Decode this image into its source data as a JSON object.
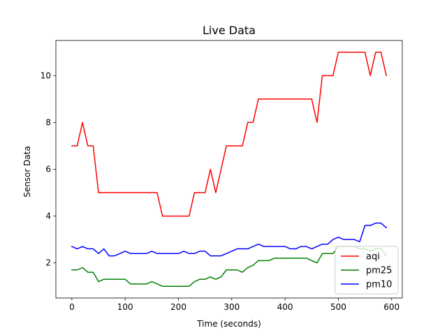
{
  "chart_data": {
    "type": "line",
    "title": "Live Data",
    "xlabel": "Time (seconds)",
    "ylabel": "Sensor Data",
    "xlim": [
      -30,
      620
    ],
    "ylim": [
      0.5,
      11.5
    ],
    "xticks": [
      0,
      100,
      200,
      300,
      400,
      500,
      600
    ],
    "yticks": [
      2,
      4,
      6,
      8,
      10
    ],
    "grid": false,
    "legend": "bottom-right",
    "series": [
      {
        "name": "aqi",
        "color": "#ff0000",
        "x": [
          0,
          10,
          20,
          30,
          40,
          50,
          60,
          70,
          80,
          90,
          100,
          110,
          120,
          130,
          140,
          150,
          160,
          170,
          180,
          190,
          200,
          210,
          220,
          230,
          240,
          250,
          260,
          270,
          280,
          290,
          300,
          310,
          320,
          330,
          340,
          350,
          360,
          370,
          380,
          390,
          400,
          410,
          420,
          430,
          440,
          450,
          460,
          470,
          480,
          490,
          500,
          510,
          520,
          530,
          540,
          550,
          560,
          570,
          580,
          590
        ],
        "values": [
          7,
          7,
          8,
          7,
          7,
          5,
          5,
          5,
          5,
          5,
          5,
          5,
          5,
          5,
          5,
          5,
          5,
          4,
          4,
          4,
          4,
          4,
          4,
          5,
          5,
          5,
          6,
          5,
          6,
          7,
          7,
          7,
          7,
          8,
          8,
          9,
          9,
          9,
          9,
          9,
          9,
          9,
          9,
          9,
          9,
          9,
          8,
          10,
          10,
          10,
          11,
          11,
          11,
          11,
          11,
          11,
          10,
          11,
          11,
          10
        ]
      },
      {
        "name": "pm25",
        "color": "#008000",
        "x": [
          0,
          10,
          20,
          30,
          40,
          50,
          60,
          70,
          80,
          90,
          100,
          110,
          120,
          130,
          140,
          150,
          160,
          170,
          180,
          190,
          200,
          210,
          220,
          230,
          240,
          250,
          260,
          270,
          280,
          290,
          300,
          310,
          320,
          330,
          340,
          350,
          360,
          370,
          380,
          390,
          400,
          410,
          420,
          430,
          440,
          450,
          460,
          470,
          480,
          490,
          500,
          510,
          520,
          530,
          540,
          550,
          560,
          570,
          580,
          590
        ],
        "values": [
          1.7,
          1.7,
          1.8,
          1.6,
          1.6,
          1.2,
          1.3,
          1.3,
          1.3,
          1.3,
          1.3,
          1.1,
          1.1,
          1.1,
          1.1,
          1.2,
          1.1,
          1.0,
          1.0,
          1.0,
          1.0,
          1.0,
          1.0,
          1.2,
          1.3,
          1.3,
          1.4,
          1.3,
          1.4,
          1.7,
          1.7,
          1.7,
          1.6,
          1.8,
          1.9,
          2.1,
          2.1,
          2.1,
          2.2,
          2.2,
          2.2,
          2.2,
          2.2,
          2.2,
          2.2,
          2.1,
          2.0,
          2.4,
          2.4,
          2.4,
          2.7,
          2.7,
          2.7,
          2.7,
          2.6,
          2.6,
          2.5,
          2.6,
          2.6,
          2.3
        ]
      },
      {
        "name": "pm10",
        "color": "#0000ff",
        "x": [
          0,
          10,
          20,
          30,
          40,
          50,
          60,
          70,
          80,
          90,
          100,
          110,
          120,
          130,
          140,
          150,
          160,
          170,
          180,
          190,
          200,
          210,
          220,
          230,
          240,
          250,
          260,
          270,
          280,
          290,
          300,
          310,
          320,
          330,
          340,
          350,
          360,
          370,
          380,
          390,
          400,
          410,
          420,
          430,
          440,
          450,
          460,
          470,
          480,
          490,
          500,
          510,
          520,
          530,
          540,
          550,
          560,
          570,
          580,
          590
        ],
        "values": [
          2.7,
          2.6,
          2.7,
          2.6,
          2.6,
          2.4,
          2.6,
          2.3,
          2.3,
          2.4,
          2.5,
          2.4,
          2.4,
          2.4,
          2.4,
          2.5,
          2.4,
          2.4,
          2.4,
          2.4,
          2.4,
          2.5,
          2.4,
          2.4,
          2.5,
          2.5,
          2.3,
          2.3,
          2.3,
          2.4,
          2.5,
          2.6,
          2.6,
          2.6,
          2.7,
          2.8,
          2.7,
          2.7,
          2.7,
          2.7,
          2.7,
          2.6,
          2.6,
          2.7,
          2.7,
          2.6,
          2.7,
          2.8,
          2.8,
          3.0,
          3.1,
          3.0,
          3.0,
          3.0,
          2.9,
          3.6,
          3.6,
          3.7,
          3.7,
          3.5
        ]
      }
    ]
  }
}
